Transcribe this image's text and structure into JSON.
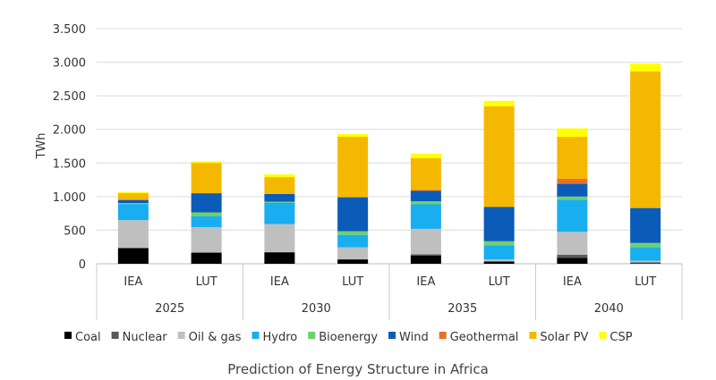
{
  "chart_data": {
    "type": "bar",
    "stacked": true,
    "title": "Prediction of Energy Structure in Africa",
    "ylabel": "TWh",
    "xlabel": "",
    "ylim": [
      0,
      3500
    ],
    "yticks": [
      0,
      500,
      1000,
      1500,
      2000,
      2500,
      3000,
      3500
    ],
    "ytick_labels": [
      "0",
      "500",
      "1.000",
      "1.500",
      "2.000",
      "2.500",
      "3.000",
      "3.500"
    ],
    "grid": true,
    "legend_position": "bottom",
    "groups": [
      "2025",
      "2030",
      "2035",
      "2040"
    ],
    "subcategories": [
      "IEA",
      "LUT"
    ],
    "categories": [
      "2025 IEA",
      "2025 LUT",
      "2030 IEA",
      "2030 LUT",
      "2035 IEA",
      "2035 LUT",
      "2040 IEA",
      "2040 LUT"
    ],
    "series": [
      {
        "name": "Coal",
        "color": "#000000",
        "values": [
          230,
          165,
          170,
          65,
          120,
          30,
          90,
          10
        ]
      },
      {
        "name": "Nuclear",
        "color": "#595959",
        "values": [
          10,
          5,
          5,
          0,
          20,
          10,
          45,
          10
        ]
      },
      {
        "name": "Oil & gas",
        "color": "#bfbfbf",
        "values": [
          410,
          375,
          415,
          180,
          380,
          25,
          340,
          25
        ]
      },
      {
        "name": "Hydro",
        "color": "#18aef0",
        "values": [
          240,
          160,
          320,
          185,
          365,
          210,
          480,
          200
        ]
      },
      {
        "name": "Bioenergy",
        "color": "#6fd06a",
        "values": [
          15,
          60,
          15,
          55,
          45,
          60,
          45,
          65
        ]
      },
      {
        "name": "Wind",
        "color": "#0b5bb8",
        "values": [
          45,
          285,
          115,
          505,
          155,
          510,
          190,
          520
        ]
      },
      {
        "name": "Geothermal",
        "color": "#e8702a",
        "values": [
          0,
          0,
          0,
          0,
          15,
          0,
          75,
          0
        ]
      },
      {
        "name": "Solar PV",
        "color": "#f5b800",
        "values": [
          100,
          450,
          250,
          900,
          470,
          1500,
          625,
          2035
        ]
      },
      {
        "name": "CSP",
        "color": "#ffff00",
        "values": [
          15,
          25,
          40,
          40,
          70,
          80,
          125,
          115
        ]
      }
    ]
  }
}
